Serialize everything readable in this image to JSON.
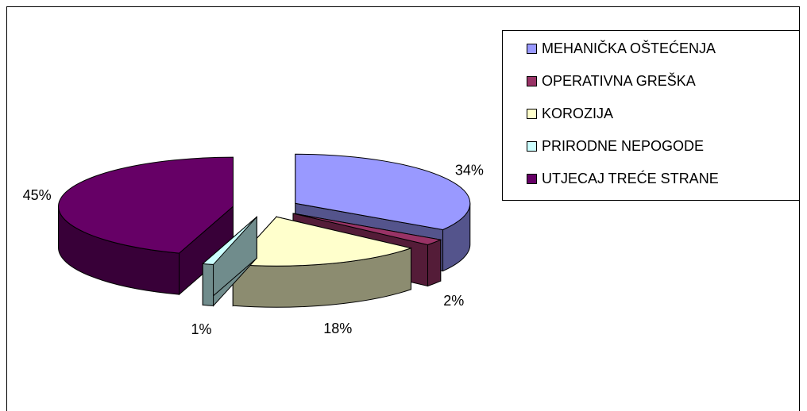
{
  "chart_data": {
    "type": "pie3d",
    "categories": [
      "MEHANIČKA OŠTEĆENJA",
      "OPERATIVNA GREŠKA",
      "KOROZIJA",
      "PRIRODNE NEPOGODE",
      "UTJECAJ TREĆE STRANE"
    ],
    "values": [
      34,
      2,
      18,
      1,
      45
    ],
    "value_labels": [
      "34%",
      "2%",
      "18%",
      "1%",
      "45%"
    ],
    "colors": [
      "#9999ff",
      "#993366",
      "#ffffcc",
      "#ccffff",
      "#660066"
    ],
    "legend": "right"
  }
}
